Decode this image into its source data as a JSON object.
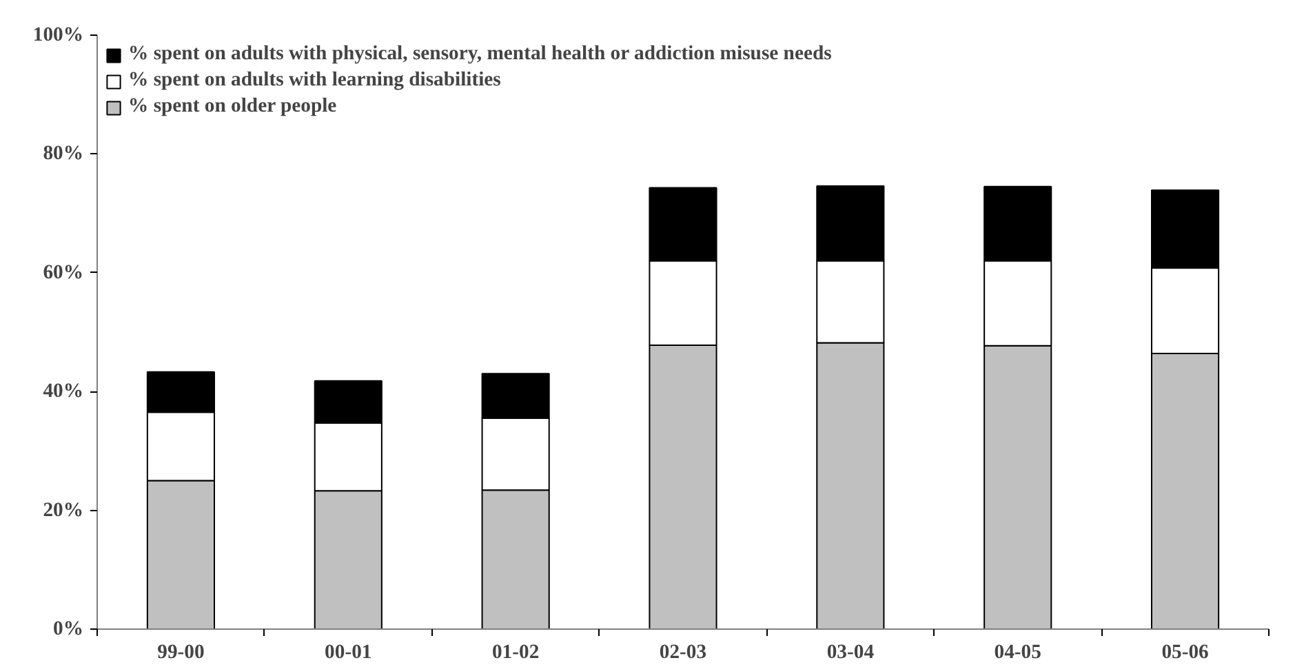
{
  "chart_data": {
    "type": "bar",
    "stacked": true,
    "categories": [
      "99-00",
      "00-01",
      "01-02",
      "02-03",
      "03-04",
      "04-05",
      "05-06"
    ],
    "series": [
      {
        "name": "% spent on older people",
        "color": "#c0c0c0",
        "values": [
          25,
          23.3,
          23.4,
          47.8,
          48.2,
          47.7,
          46.4
        ]
      },
      {
        "name": "% spent on adults with learning disabilities",
        "color": "#ffffff",
        "values": [
          11.5,
          11.4,
          12.1,
          14.2,
          13.8,
          14.3,
          14.4
        ]
      },
      {
        "name": "% spent on adults with physical, sensory, mental health or addiction misuse needs",
        "color": "#000000",
        "values": [
          6.8,
          7.1,
          7.5,
          12.3,
          12.6,
          12.5,
          13.1
        ]
      }
    ],
    "ylim": [
      0,
      100
    ],
    "yticks": [
      {
        "value": 0,
        "label": "0%"
      },
      {
        "value": 20,
        "label": "20%"
      },
      {
        "value": 40,
        "label": "40%"
      },
      {
        "value": 60,
        "label": "60%"
      },
      {
        "value": 80,
        "label": "80%"
      },
      {
        "value": 100,
        "label": "100%"
      }
    ],
    "grid": false,
    "legend": "top left"
  }
}
